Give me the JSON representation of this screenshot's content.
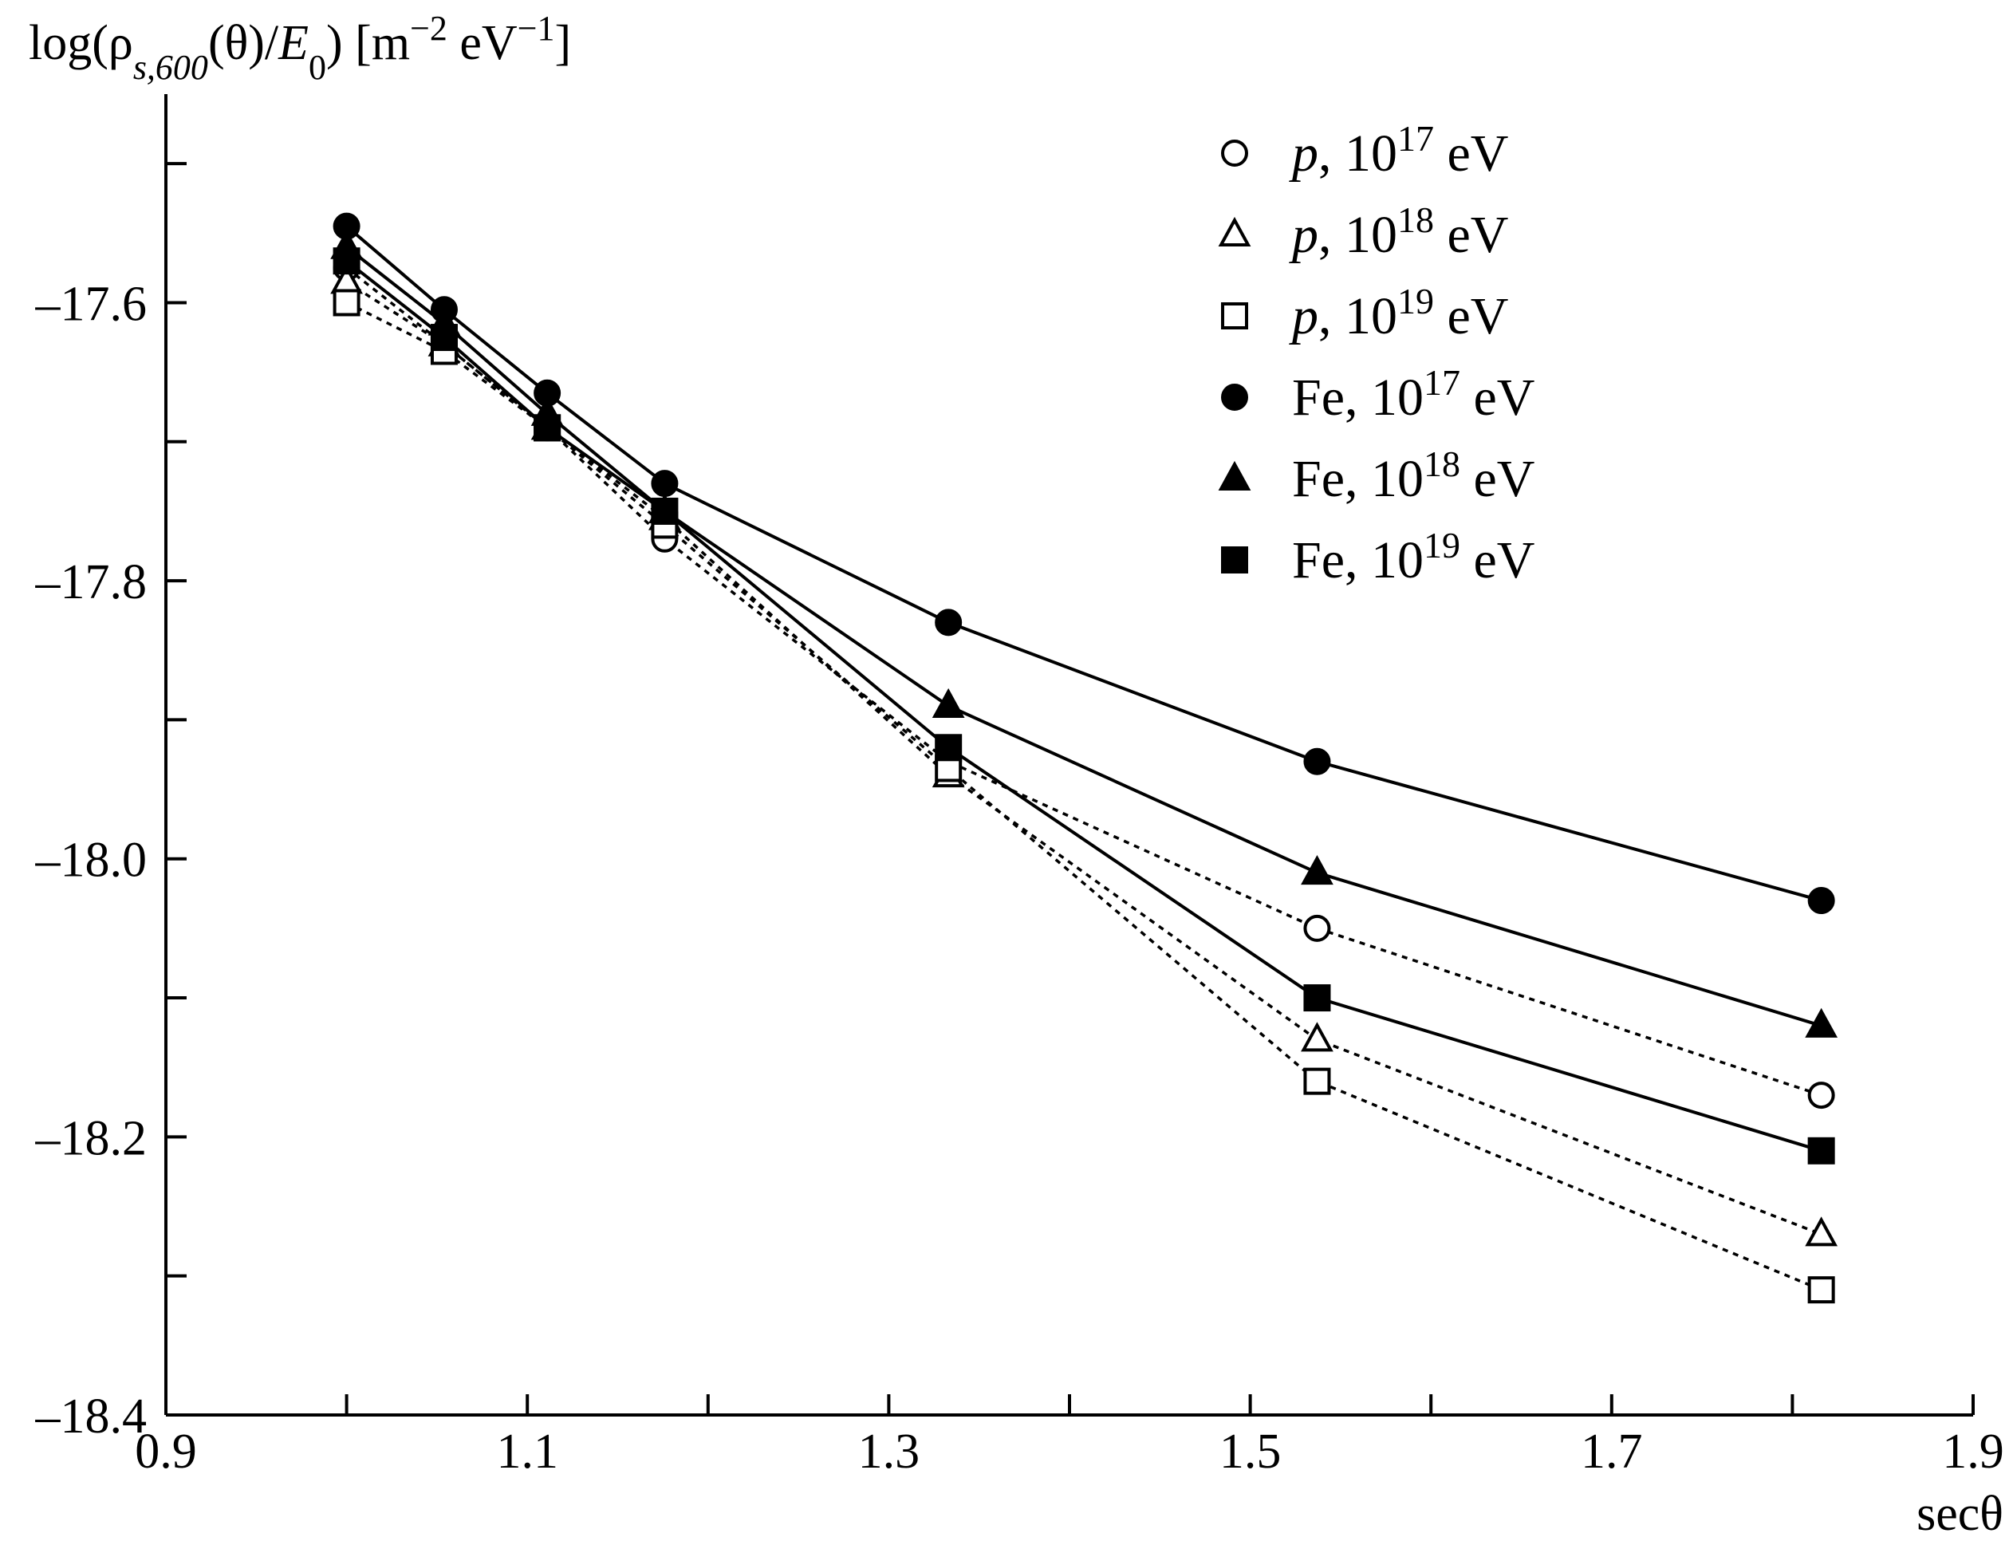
{
  "chart_data": {
    "type": "line",
    "title": "",
    "ylabel": {
      "prefix": "log(ρ",
      "subscript": "s,600",
      "middle": "(θ)/",
      "italic": "E",
      "italic_sub": "0",
      "suffix": ") [m",
      "exp1": "−2",
      "mid2": " eV",
      "exp2": "−1",
      "end": "]"
    },
    "xlabel": "secθ",
    "xlim": [
      0.9,
      1.9
    ],
    "ylim": [
      -18.4,
      -17.45
    ],
    "x_ticks": [
      0.9,
      1.1,
      1.3,
      1.5,
      1.7,
      1.9
    ],
    "x_tick_labels": [
      "0.9",
      "1.1",
      "1.3",
      "1.5",
      "1.7",
      "1.9"
    ],
    "y_ticks": [
      -17.6,
      -17.8,
      -18.0,
      -18.2,
      -18.4
    ],
    "y_tick_labels": [
      "–17.6",
      "–17.8",
      "–18.0",
      "–18.2",
      "–18.4"
    ],
    "y_minor_ticks": [
      -17.5,
      -17.7,
      -17.9,
      -18.1,
      -18.3
    ],
    "x": [
      1.0,
      1.054,
      1.111,
      1.176,
      1.333,
      1.537,
      1.816
    ],
    "legend_position": "top-right",
    "series": [
      {
        "name": "p, 10^17 eV",
        "particle": "p",
        "base": "10",
        "exp": "17",
        "unit": "eV",
        "marker": "circle-open",
        "line": "dotted",
        "values": [
          -17.575,
          -17.63,
          -17.69,
          -17.77,
          -17.93,
          -18.05,
          -18.17
        ]
      },
      {
        "name": "p, 10^18 eV",
        "particle": "p",
        "base": "10",
        "exp": "18",
        "unit": "eV",
        "marker": "triangle-open",
        "line": "dotted",
        "values": [
          -17.585,
          -17.63,
          -17.69,
          -17.755,
          -17.94,
          -18.13,
          -18.27
        ]
      },
      {
        "name": "p, 10^19 eV",
        "particle": "p",
        "base": "10",
        "exp": "19",
        "unit": "eV",
        "marker": "square-open",
        "line": "dotted",
        "values": [
          -17.6,
          -17.635,
          -17.69,
          -17.76,
          -17.935,
          -18.16,
          -18.31
        ]
      },
      {
        "name": "Fe, 10^17 eV",
        "particle": "Fe",
        "base": "10",
        "exp": "17",
        "unit": "eV",
        "marker": "circle-filled",
        "line": "solid",
        "values": [
          -17.545,
          -17.605,
          -17.665,
          -17.73,
          -17.83,
          -17.93,
          -18.03
        ]
      },
      {
        "name": "Fe, 10^18 eV",
        "particle": "Fe",
        "base": "10",
        "exp": "18",
        "unit": "eV",
        "marker": "triangle-filled",
        "line": "solid",
        "values": [
          -17.56,
          -17.615,
          -17.68,
          -17.75,
          -17.89,
          -18.01,
          -18.12
        ]
      },
      {
        "name": "Fe, 10^19 eV",
        "particle": "Fe",
        "base": "10",
        "exp": "19",
        "unit": "eV",
        "marker": "square-filled",
        "line": "solid",
        "values": [
          -17.57,
          -17.625,
          -17.69,
          -17.75,
          -17.92,
          -18.1,
          -18.21
        ]
      }
    ]
  }
}
